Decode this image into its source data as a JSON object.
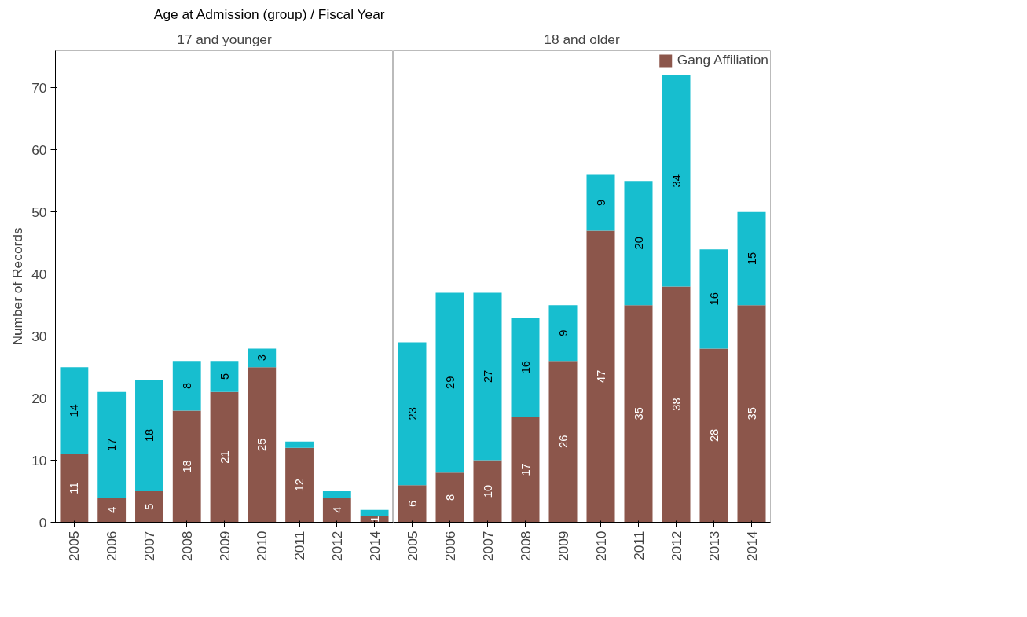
{
  "chart_data": [
    {
      "type": "bar",
      "title": "Age at Admission (group)  /  Fiscal Year",
      "subtitle": "17 and younger",
      "ylabel": "Number of Records",
      "stacked": true,
      "categories": [
        "2005",
        "2006",
        "2007",
        "2008",
        "2009",
        "2010",
        "2011",
        "2012",
        "2014"
      ],
      "ylim": [
        0,
        76
      ],
      "yticks": [
        0,
        10,
        20,
        30,
        40,
        50,
        60,
        70
      ],
      "grid": false,
      "series": [
        {
          "color": "#8c564b",
          "values": [
            11,
            4,
            5,
            18,
            21,
            25,
            12,
            4,
            1
          ],
          "value_labels": [
            "11",
            "4",
            "5",
            "18",
            "21",
            "25",
            "12",
            "4",
            "1"
          ]
        },
        {
          "color": "#17becf",
          "values": [
            14,
            17,
            18,
            8,
            5,
            3,
            1,
            1,
            1
          ],
          "value_labels": [
            "14",
            "17",
            "18",
            "8",
            "5",
            "3",
            null,
            null,
            null
          ]
        }
      ]
    },
    {
      "type": "bar",
      "subtitle": "18 and older",
      "stacked": true,
      "categories": [
        "2005",
        "2006",
        "2007",
        "2008",
        "2009",
        "2010",
        "2011",
        "2012",
        "2013",
        "2014"
      ],
      "ylim": [
        0,
        76
      ],
      "yticks": [
        0,
        10,
        20,
        30,
        40,
        50,
        60,
        70
      ],
      "tick_labels": "x",
      "grid": false,
      "legend": "top right",
      "series": [
        {
          "name": "Gang Affiliation",
          "color": "#8c564b",
          "values": [
            6,
            8,
            10,
            17,
            26,
            47,
            35,
            38,
            28,
            35
          ],
          "value_labels": [
            "6",
            "8",
            "10",
            "17",
            "26",
            "47",
            "35",
            "38",
            "28",
            "35"
          ]
        },
        {
          "color": "#17becf",
          "values": [
            23,
            29,
            27,
            16,
            9,
            9,
            20,
            34,
            16,
            15
          ],
          "value_labels": [
            "23",
            "29",
            "27",
            "16",
            "9",
            "9",
            "20",
            "34",
            "16",
            "15"
          ]
        }
      ]
    }
  ]
}
